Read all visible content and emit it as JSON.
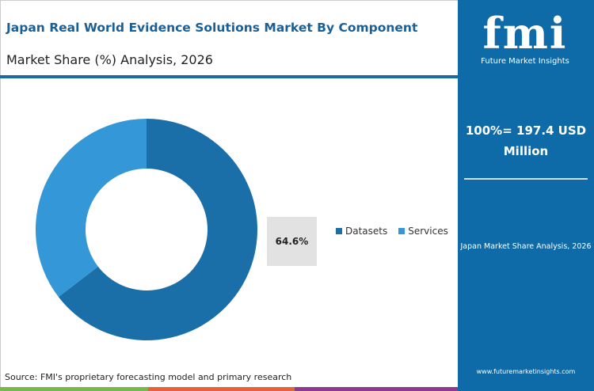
{
  "header": {
    "title": "Japan Real World Evidence Solutions Market By Component",
    "subtitle": "Market Share (%) Analysis, 2026"
  },
  "sidebar": {
    "logo_text": "fmi",
    "logo_caption": "Future Market Insights",
    "total": "100%= 197.4 USD Million",
    "subtitle": "Japan Market Share Analysis, 2026",
    "url": "www.futuremarketinsights.com"
  },
  "chart_data": {
    "type": "pie",
    "donut": true,
    "categories": [
      "Datasets",
      "Services"
    ],
    "values": [
      64.6,
      35.4
    ],
    "colors": [
      "#1b6fa8",
      "#3497d8"
    ],
    "highlight_label": "64.6%",
    "legend_position": "right"
  },
  "footer": {
    "source": "Source: FMI's proprietary forecasting model and primary research"
  }
}
